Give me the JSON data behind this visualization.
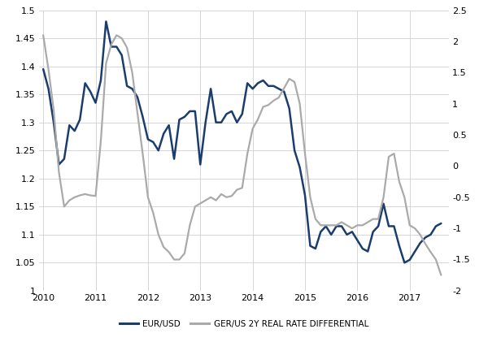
{
  "eur_usd": {
    "dates": [
      2010.0,
      2010.1,
      2010.2,
      2010.3,
      2010.4,
      2010.5,
      2010.6,
      2010.7,
      2010.8,
      2010.9,
      2011.0,
      2011.1,
      2011.2,
      2011.3,
      2011.4,
      2011.5,
      2011.6,
      2011.7,
      2011.8,
      2011.9,
      2012.0,
      2012.1,
      2012.2,
      2012.3,
      2012.4,
      2012.5,
      2012.6,
      2012.7,
      2012.8,
      2012.9,
      2013.0,
      2013.1,
      2013.2,
      2013.3,
      2013.4,
      2013.5,
      2013.6,
      2013.7,
      2013.8,
      2013.9,
      2014.0,
      2014.1,
      2014.2,
      2014.3,
      2014.4,
      2014.5,
      2014.6,
      2014.7,
      2014.8,
      2014.9,
      2015.0,
      2015.1,
      2015.2,
      2015.3,
      2015.4,
      2015.5,
      2015.6,
      2015.7,
      2015.8,
      2015.9,
      2016.0,
      2016.1,
      2016.2,
      2016.3,
      2016.4,
      2016.5,
      2016.6,
      2016.7,
      2016.8,
      2016.9,
      2017.0,
      2017.1,
      2017.2,
      2017.3,
      2017.4,
      2017.5,
      2017.6
    ],
    "values": [
      1.395,
      1.36,
      1.3,
      1.225,
      1.235,
      1.295,
      1.285,
      1.305,
      1.37,
      1.355,
      1.335,
      1.375,
      1.48,
      1.435,
      1.435,
      1.42,
      1.365,
      1.36,
      1.345,
      1.31,
      1.27,
      1.265,
      1.25,
      1.28,
      1.295,
      1.235,
      1.305,
      1.31,
      1.32,
      1.32,
      1.225,
      1.3,
      1.36,
      1.3,
      1.3,
      1.315,
      1.32,
      1.3,
      1.315,
      1.37,
      1.36,
      1.37,
      1.375,
      1.365,
      1.365,
      1.36,
      1.355,
      1.325,
      1.25,
      1.22,
      1.17,
      1.08,
      1.075,
      1.105,
      1.115,
      1.1,
      1.115,
      1.115,
      1.1,
      1.105,
      1.09,
      1.075,
      1.07,
      1.105,
      1.115,
      1.155,
      1.115,
      1.115,
      1.08,
      1.05,
      1.055,
      1.07,
      1.085,
      1.095,
      1.1,
      1.115,
      1.12
    ],
    "color": "#1b3d6e",
    "linewidth": 1.8
  },
  "ger_us": {
    "dates": [
      2010.0,
      2010.1,
      2010.2,
      2010.3,
      2010.4,
      2010.5,
      2010.6,
      2010.7,
      2010.8,
      2010.9,
      2011.0,
      2011.1,
      2011.2,
      2011.3,
      2011.4,
      2011.5,
      2011.6,
      2011.7,
      2011.8,
      2011.9,
      2012.0,
      2012.1,
      2012.2,
      2012.3,
      2012.4,
      2012.5,
      2012.6,
      2012.7,
      2012.8,
      2012.9,
      2013.0,
      2013.1,
      2013.2,
      2013.3,
      2013.4,
      2013.5,
      2013.6,
      2013.7,
      2013.8,
      2013.9,
      2014.0,
      2014.1,
      2014.2,
      2014.3,
      2014.4,
      2014.5,
      2014.6,
      2014.7,
      2014.8,
      2014.9,
      2015.0,
      2015.1,
      2015.2,
      2015.3,
      2015.4,
      2015.5,
      2015.6,
      2015.7,
      2015.8,
      2015.9,
      2016.0,
      2016.1,
      2016.2,
      2016.3,
      2016.4,
      2016.5,
      2016.6,
      2016.7,
      2016.8,
      2016.9,
      2017.0,
      2017.1,
      2017.2,
      2017.3,
      2017.4,
      2017.5,
      2017.6
    ],
    "values": [
      2.1,
      1.55,
      0.9,
      -0.1,
      -0.65,
      -0.55,
      -0.5,
      -0.47,
      -0.45,
      -0.47,
      -0.48,
      0.4,
      1.65,
      1.95,
      2.1,
      2.05,
      1.9,
      1.5,
      0.85,
      0.2,
      -0.5,
      -0.75,
      -1.1,
      -1.3,
      -1.38,
      -1.5,
      -1.5,
      -1.4,
      -0.95,
      -0.65,
      -0.6,
      -0.55,
      -0.5,
      -0.55,
      -0.45,
      -0.5,
      -0.48,
      -0.38,
      -0.35,
      0.2,
      0.6,
      0.75,
      0.95,
      0.98,
      1.05,
      1.1,
      1.25,
      1.4,
      1.35,
      1.0,
      0.2,
      -0.5,
      -0.85,
      -0.95,
      -0.95,
      -0.95,
      -0.95,
      -0.9,
      -0.95,
      -1.0,
      -0.95,
      -0.95,
      -0.9,
      -0.85,
      -0.85,
      -0.5,
      0.15,
      0.2,
      -0.25,
      -0.5,
      -0.95,
      -1.0,
      -1.1,
      -1.25,
      -1.38,
      -1.5,
      -1.75
    ],
    "color": "#aaaaaa",
    "linewidth": 1.6
  },
  "left_ylim": [
    1.0,
    1.5
  ],
  "right_ylim": [
    -2.0,
    2.5
  ],
  "left_yticks": [
    1.0,
    1.05,
    1.1,
    1.15,
    1.2,
    1.25,
    1.3,
    1.35,
    1.4,
    1.45,
    1.5
  ],
  "left_yticklabels": [
    "1",
    "1.05",
    "1.1",
    "1.15",
    "1.2",
    "1.25",
    "1.3",
    "1.35",
    "1.4",
    "1.45",
    "1.5"
  ],
  "right_yticks": [
    -2.0,
    -1.5,
    -1.0,
    -0.5,
    0.0,
    0.5,
    1.0,
    1.5,
    2.0,
    2.5
  ],
  "right_yticklabels": [
    "-2",
    "-1.5",
    "-1",
    "-0.5",
    "0",
    "0.5",
    "1",
    "1.5",
    "2",
    "2.5"
  ],
  "xticks": [
    2010,
    2011,
    2012,
    2013,
    2014,
    2015,
    2016,
    2017
  ],
  "xlim": [
    2009.92,
    2017.75
  ],
  "legend_labels": [
    "EUR/USD",
    "GER/US 2Y REAL RATE DIFFERENTIAL"
  ],
  "background_color": "#ffffff",
  "grid_color": "#d0d0d0",
  "tick_fontsize": 8,
  "legend_fontsize": 7.5
}
